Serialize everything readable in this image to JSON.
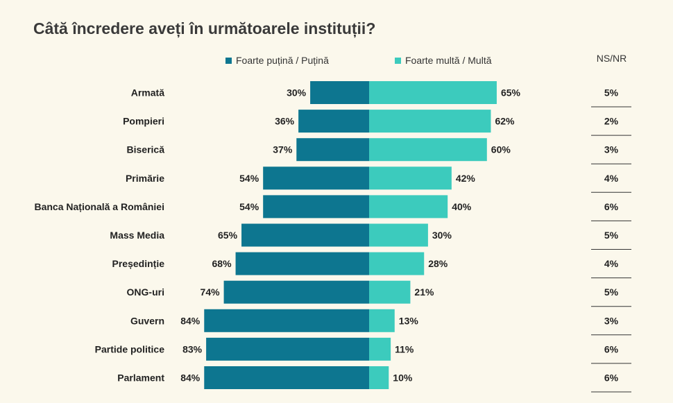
{
  "chart_data": {
    "type": "bar",
    "orientation": "horizontal-diverging",
    "title": "Câtă încredere aveți în următoarele instituții?",
    "series": [
      {
        "name": "Foarte puțină / Puțină",
        "color": "#0d7690",
        "values": [
          30,
          36,
          37,
          54,
          54,
          65,
          68,
          74,
          84,
          83,
          84
        ]
      },
      {
        "name": "Foarte multă / Multă",
        "color": "#3ccbbd",
        "values": [
          65,
          62,
          60,
          42,
          40,
          30,
          28,
          21,
          13,
          11,
          10
        ]
      }
    ],
    "categories": [
      "Armată",
      "Pompieri",
      "Biserică",
      "Primărie",
      "Banca Națională a României",
      "Mass Media",
      "Președinție",
      "ONG-uri",
      "Guvern",
      "Partide politice",
      "Parlament"
    ],
    "nsnr_header": "NS/NR",
    "nsnr_values": [
      5,
      2,
      3,
      4,
      6,
      5,
      4,
      5,
      3,
      6,
      6
    ],
    "unit": "%"
  }
}
